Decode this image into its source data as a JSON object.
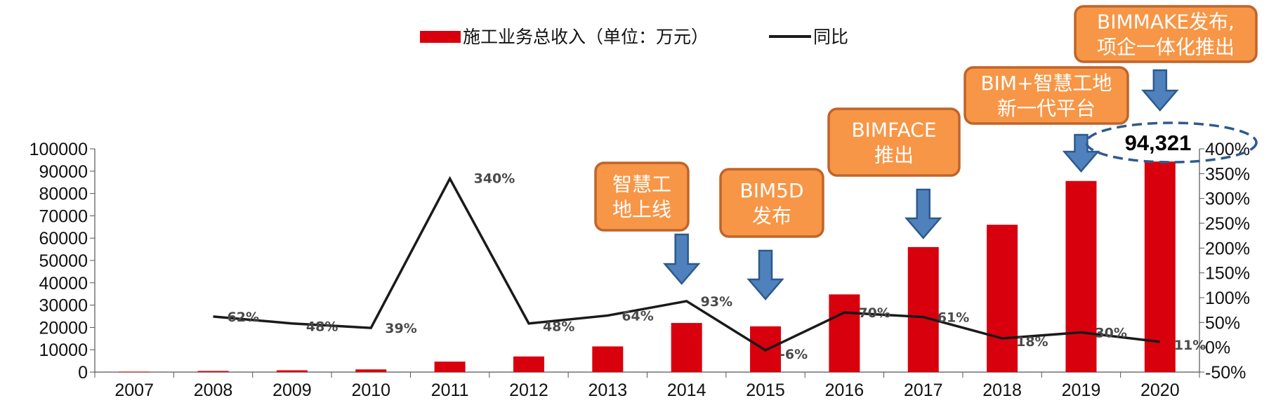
{
  "chart_data": {
    "type": "bar",
    "categories": [
      "2007",
      "2008",
      "2009",
      "2010",
      "2011",
      "2012",
      "2013",
      "2014",
      "2015",
      "2016",
      "2017",
      "2018",
      "2019",
      "2020"
    ],
    "series": [
      {
        "name": "施工业务总收入（单位：万元）",
        "axis": "left",
        "type": "bar",
        "values": [
          200,
          500,
          800,
          1200,
          4700,
          7000,
          11500,
          22000,
          20500,
          34800,
          56000,
          66000,
          85600,
          94321
        ]
      },
      {
        "name": "同比",
        "axis": "right",
        "type": "line",
        "values": [
          null,
          62,
          48,
          39,
          340,
          48,
          64,
          93,
          -6,
          70,
          61,
          18,
          30,
          11
        ]
      }
    ],
    "line_labels": [
      "",
      "62%",
      "48%",
      "39%",
      "340%",
      "48%",
      "64%",
      "93%",
      "-6%",
      "70%",
      "61%",
      "18%",
      "30%",
      "11%"
    ],
    "left_axis": {
      "ylim": [
        0,
        100000
      ],
      "ticks": [
        "0",
        "10000",
        "20000",
        "30000",
        "40000",
        "50000",
        "60000",
        "70000",
        "80000",
        "90000",
        "100000"
      ]
    },
    "right_axis": {
      "ylim": [
        -50,
        400
      ],
      "ticks": [
        "-50%",
        "0%",
        "50%",
        "100%",
        "150%",
        "200%",
        "250%",
        "300%",
        "350%",
        "400%"
      ]
    },
    "legend": {
      "position": "top-center",
      "items": [
        "施工业务总收入（单位：万元）",
        "同比"
      ]
    },
    "highlight_value": "94,321",
    "callouts": [
      {
        "year": "2014",
        "lines": [
          "智慧工",
          "地上线"
        ]
      },
      {
        "year": "2015",
        "lines": [
          "BIM5D",
          "发布"
        ]
      },
      {
        "year": "2017",
        "lines": [
          "BIMFACE",
          "推出"
        ]
      },
      {
        "year": "2019",
        "lines": [
          "BIM+智慧工地",
          "新一代平台"
        ]
      },
      {
        "year": "2020",
        "lines": [
          "BIMMAKE发布,",
          "项企一体化推出"
        ]
      }
    ],
    "colors": {
      "bar": "#D9000D",
      "line": "#1a1a1a",
      "callout_fill": "#F79646",
      "callout_border": "#C0642A",
      "arrow": "#4F81BD",
      "arrow_border": "#2C5A8C",
      "highlight_ellipse": "#2E5A8C"
    }
  }
}
